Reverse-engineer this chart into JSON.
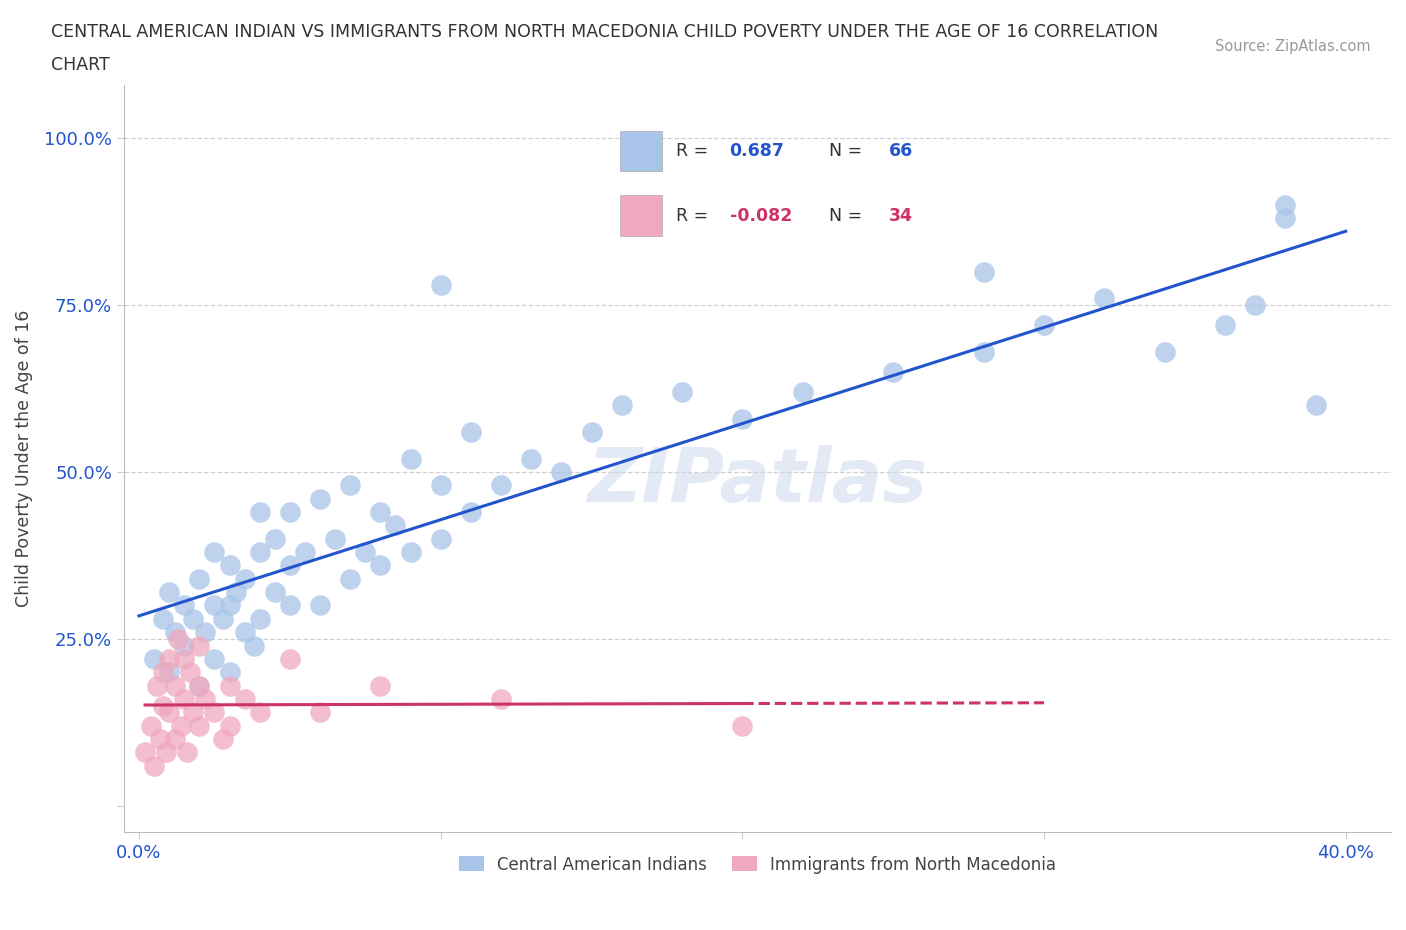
{
  "title_line1": "CENTRAL AMERICAN INDIAN VS IMMIGRANTS FROM NORTH MACEDONIA CHILD POVERTY UNDER THE AGE OF 16 CORRELATION",
  "title_line2": "CHART",
  "source": "Source: ZipAtlas.com",
  "ylabel": "Child Poverty Under the Age of 16",
  "watermark": "ZIPatlas",
  "legend1_R": "0.687",
  "legend1_N": "66",
  "legend2_R": "-0.082",
  "legend2_N": "34",
  "blue_color": "#a8c4e8",
  "pink_color": "#f0a8be",
  "line_blue": "#2255cc",
  "line_pink": "#cc3366",
  "blue_x": [
    0.005,
    0.008,
    0.01,
    0.01,
    0.012,
    0.015,
    0.015,
    0.018,
    0.02,
    0.02,
    0.022,
    0.025,
    0.025,
    0.025,
    0.028,
    0.03,
    0.03,
    0.03,
    0.032,
    0.035,
    0.035,
    0.038,
    0.04,
    0.04,
    0.04,
    0.045,
    0.045,
    0.05,
    0.05,
    0.05,
    0.055,
    0.06,
    0.06,
    0.065,
    0.07,
    0.07,
    0.075,
    0.08,
    0.08,
    0.085,
    0.09,
    0.09,
    0.1,
    0.1,
    0.11,
    0.11,
    0.12,
    0.13,
    0.14,
    0.15,
    0.16,
    0.18,
    0.2,
    0.22,
    0.25,
    0.28,
    0.3,
    0.32,
    0.34,
    0.36,
    0.37,
    0.38,
    0.39,
    0.1,
    0.28,
    0.38
  ],
  "blue_y": [
    0.22,
    0.28,
    0.2,
    0.32,
    0.26,
    0.24,
    0.3,
    0.28,
    0.18,
    0.34,
    0.26,
    0.22,
    0.3,
    0.38,
    0.28,
    0.2,
    0.3,
    0.36,
    0.32,
    0.26,
    0.34,
    0.24,
    0.28,
    0.38,
    0.44,
    0.32,
    0.4,
    0.3,
    0.36,
    0.44,
    0.38,
    0.3,
    0.46,
    0.4,
    0.34,
    0.48,
    0.38,
    0.36,
    0.44,
    0.42,
    0.38,
    0.52,
    0.4,
    0.48,
    0.44,
    0.56,
    0.48,
    0.52,
    0.5,
    0.56,
    0.6,
    0.62,
    0.58,
    0.62,
    0.65,
    0.68,
    0.72,
    0.76,
    0.68,
    0.72,
    0.75,
    0.88,
    0.6,
    0.78,
    0.8,
    0.9
  ],
  "pink_x": [
    0.002,
    0.004,
    0.005,
    0.006,
    0.007,
    0.008,
    0.008,
    0.009,
    0.01,
    0.01,
    0.012,
    0.012,
    0.013,
    0.014,
    0.015,
    0.015,
    0.016,
    0.017,
    0.018,
    0.02,
    0.02,
    0.02,
    0.022,
    0.025,
    0.028,
    0.03,
    0.03,
    0.035,
    0.04,
    0.05,
    0.06,
    0.08,
    0.12,
    0.2
  ],
  "pink_y": [
    0.08,
    0.12,
    0.06,
    0.18,
    0.1,
    0.15,
    0.2,
    0.08,
    0.14,
    0.22,
    0.1,
    0.18,
    0.25,
    0.12,
    0.16,
    0.22,
    0.08,
    0.2,
    0.14,
    0.12,
    0.18,
    0.24,
    0.16,
    0.14,
    0.1,
    0.18,
    0.12,
    0.16,
    0.14,
    0.22,
    0.14,
    0.18,
    0.16,
    0.12
  ],
  "xlim_min": -0.005,
  "xlim_max": 0.415,
  "ylim_min": -0.04,
  "ylim_max": 1.08
}
